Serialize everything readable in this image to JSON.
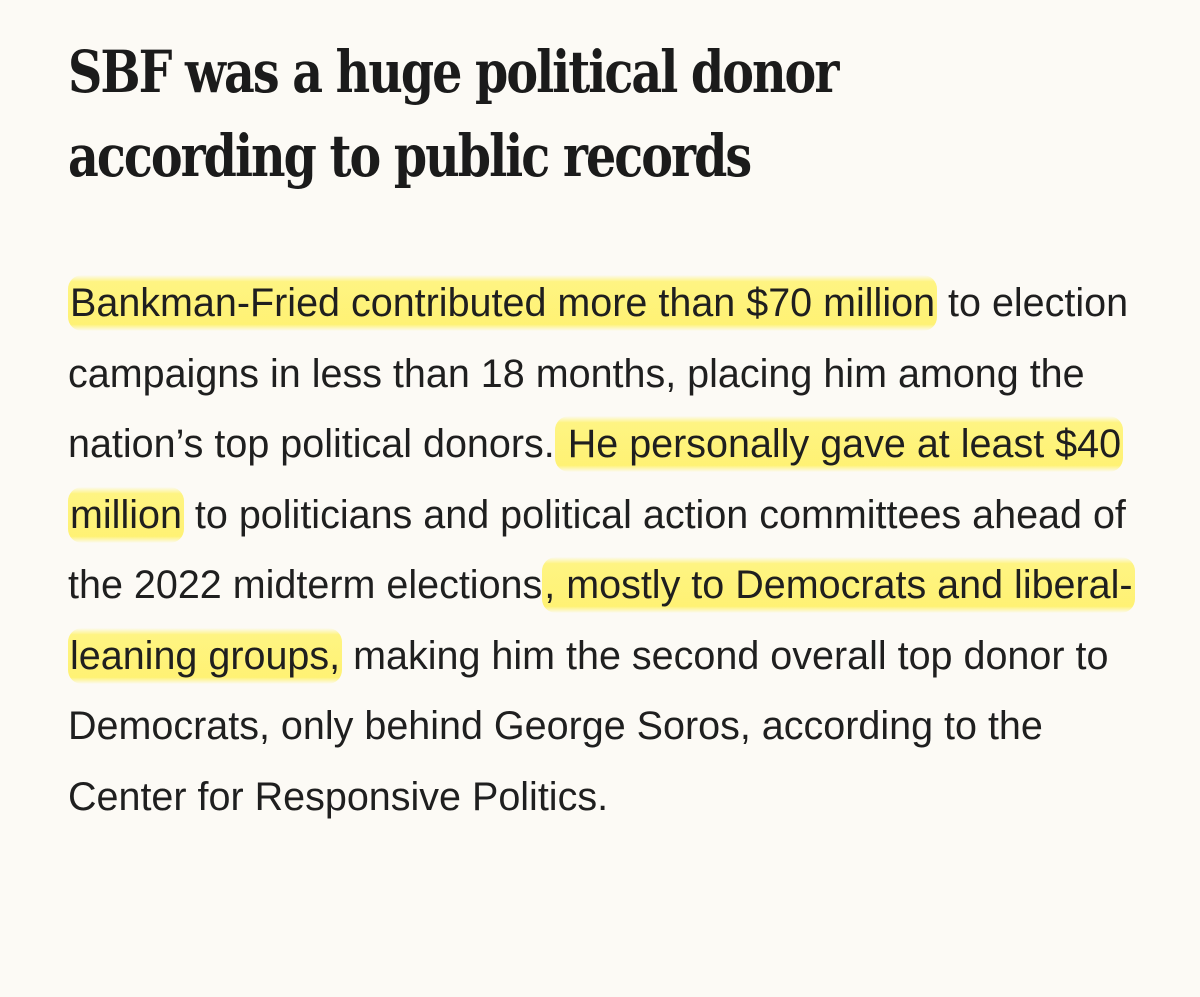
{
  "article": {
    "headline_line1": "SBF was a huge political donor",
    "headline_line2": "according to public records",
    "body": {
      "hl1": "Bankman-Fried contributed more than $70 million",
      "t1": " to election campaigns in less than 18 months, placing him among the nation’s top political donors.",
      "hl2": " He personally gave at least $40 million",
      "t2": " to politicians and political action committees ahead of the 2022 midterm elections",
      "hl3": ", mostly to Democrats and liberal-leaning groups,",
      "t3": " making him the second overall top donor to Democrats, only behind George Soros, according to the Center for Responsive Politics."
    }
  },
  "colors": {
    "background": "#fcfaf5",
    "text": "#1f1f1f",
    "highlight": "#fff266"
  }
}
